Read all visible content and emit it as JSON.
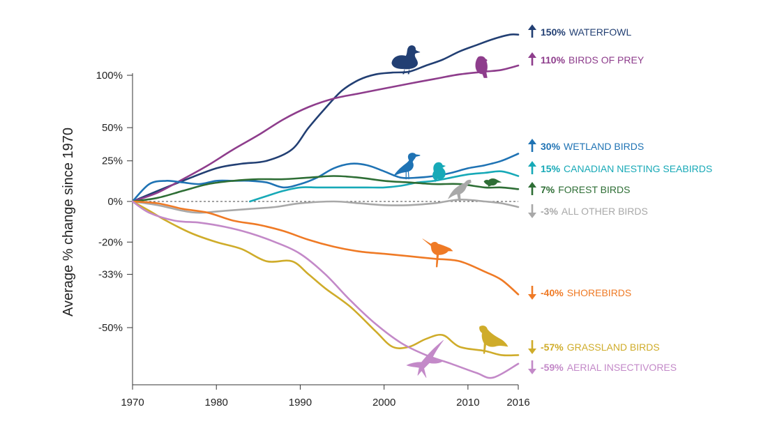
{
  "chart_data": {
    "type": "line",
    "title": "",
    "xlabel": "",
    "ylabel": "Average % change since 1970",
    "xlim": [
      1970,
      2016
    ],
    "x_ticks": [
      "1970",
      "1980",
      "1990",
      "2000",
      "2010",
      "2016"
    ],
    "y_ticks": [
      {
        "value": 100,
        "label": "100%"
      },
      {
        "value": 50,
        "label": "50%"
      },
      {
        "value": 25,
        "label": "25%"
      },
      {
        "value": 0,
        "label": "0%"
      },
      {
        "value": -20,
        "label": "-20%"
      },
      {
        "value": -33,
        "label": "-33%"
      },
      {
        "value": -50,
        "label": "-50%"
      }
    ],
    "y_scale_note": "nonlinear (index scale): 100%=doubling, -50%=halving",
    "baseline": {
      "value": 0,
      "style": "dashed"
    },
    "series": [
      {
        "name": "WATERFOWL",
        "pct": "150%",
        "direction": "up",
        "color": "#223f73",
        "icon": "duck-silhouette-icon",
        "points": [
          [
            1970,
            0
          ],
          [
            1973,
            6
          ],
          [
            1976,
            12
          ],
          [
            1980,
            20
          ],
          [
            1983,
            23
          ],
          [
            1986,
            25
          ],
          [
            1989,
            33
          ],
          [
            1991,
            50
          ],
          [
            1993,
            67
          ],
          [
            1995,
            84
          ],
          [
            1997,
            95
          ],
          [
            1999,
            101
          ],
          [
            2001,
            103
          ],
          [
            2003,
            104
          ],
          [
            2005,
            111
          ],
          [
            2007,
            118
          ],
          [
            2009,
            128
          ],
          [
            2011,
            136
          ],
          [
            2013,
            144
          ],
          [
            2015,
            150
          ],
          [
            2016,
            150
          ]
        ]
      },
      {
        "name": "BIRDS OF PREY",
        "pct": "110%",
        "direction": "up",
        "color": "#8e3d8c",
        "icon": "hawk-silhouette-icon",
        "points": [
          [
            1970,
            0
          ],
          [
            1973,
            5
          ],
          [
            1976,
            13
          ],
          [
            1979,
            22
          ],
          [
            1982,
            33
          ],
          [
            1985,
            44
          ],
          [
            1988,
            57
          ],
          [
            1991,
            68
          ],
          [
            1994,
            76
          ],
          [
            1997,
            81
          ],
          [
            2000,
            86
          ],
          [
            2003,
            91
          ],
          [
            2006,
            96
          ],
          [
            2009,
            101
          ],
          [
            2012,
            104
          ],
          [
            2014,
            106
          ],
          [
            2016,
            111
          ]
        ]
      },
      {
        "name": "WETLAND BIRDS",
        "pct": "30%",
        "direction": "up",
        "color": "#1f73b4",
        "icon": "heron-silhouette-icon",
        "points": [
          [
            1970,
            0
          ],
          [
            1972,
            10
          ],
          [
            1974,
            12
          ],
          [
            1976,
            11
          ],
          [
            1978,
            10
          ],
          [
            1980,
            12
          ],
          [
            1982,
            12
          ],
          [
            1984,
            12
          ],
          [
            1986,
            11
          ],
          [
            1988,
            8
          ],
          [
            1990,
            10
          ],
          [
            1992,
            14
          ],
          [
            1994,
            20
          ],
          [
            1996,
            23
          ],
          [
            1998,
            22
          ],
          [
            2000,
            18
          ],
          [
            2002,
            14
          ],
          [
            2004,
            14
          ],
          [
            2006,
            15
          ],
          [
            2008,
            17
          ],
          [
            2010,
            20
          ],
          [
            2012,
            22
          ],
          [
            2014,
            25
          ],
          [
            2016,
            30
          ]
        ]
      },
      {
        "name": "CANADIAN NESTING SEABIRDS",
        "pct": "15%",
        "direction": "up",
        "color": "#17a9b7",
        "icon": "puffin-silhouette-icon",
        "points": [
          [
            1984,
            0
          ],
          [
            1986,
            3
          ],
          [
            1988,
            6
          ],
          [
            1990,
            8
          ],
          [
            1992,
            8
          ],
          [
            1994,
            8
          ],
          [
            1996,
            8
          ],
          [
            1998,
            8
          ],
          [
            2000,
            8
          ],
          [
            2002,
            9
          ],
          [
            2004,
            11
          ],
          [
            2006,
            12
          ],
          [
            2008,
            14
          ],
          [
            2010,
            16
          ],
          [
            2012,
            17
          ],
          [
            2014,
            18
          ],
          [
            2016,
            15
          ]
        ]
      },
      {
        "name": "FOREST BIRDS",
        "pct": "7%",
        "direction": "up",
        "color": "#2e6e35",
        "icon": "forest-bird-silhouette-icon",
        "points": [
          [
            1970,
            0
          ],
          [
            1973,
            2
          ],
          [
            1976,
            6
          ],
          [
            1979,
            10
          ],
          [
            1982,
            12
          ],
          [
            1985,
            13
          ],
          [
            1988,
            13
          ],
          [
            1991,
            14
          ],
          [
            1994,
            15
          ],
          [
            1997,
            14
          ],
          [
            2000,
            12
          ],
          [
            2003,
            11
          ],
          [
            2006,
            10
          ],
          [
            2009,
            10
          ],
          [
            2012,
            8
          ],
          [
            2014,
            8
          ],
          [
            2016,
            7
          ]
        ]
      },
      {
        "name": "ALL OTHER BIRDS",
        "pct": "-3%",
        "direction": "down",
        "color": "#a8a8a8",
        "icon": "crow-silhouette-icon",
        "points": [
          [
            1970,
            0
          ],
          [
            1973,
            -2
          ],
          [
            1976,
            -5
          ],
          [
            1978,
            -6
          ],
          [
            1981,
            -5
          ],
          [
            1984,
            -4
          ],
          [
            1987,
            -3
          ],
          [
            1990,
            -1
          ],
          [
            1994,
            0
          ],
          [
            1997,
            -1
          ],
          [
            2000,
            -2
          ],
          [
            2003,
            -2
          ],
          [
            2006,
            -1
          ],
          [
            2009,
            1
          ],
          [
            2012,
            0
          ],
          [
            2014,
            -1
          ],
          [
            2016,
            -3
          ]
        ]
      },
      {
        "name": "SHOREBIRDS",
        "pct": "-40%",
        "direction": "down",
        "color": "#ef7a25",
        "icon": "shorebird-silhouette-icon",
        "points": [
          [
            1970,
            0
          ],
          [
            1973,
            -1
          ],
          [
            1976,
            -4
          ],
          [
            1979,
            -6
          ],
          [
            1982,
            -10
          ],
          [
            1985,
            -12
          ],
          [
            1988,
            -15
          ],
          [
            1991,
            -19
          ],
          [
            1994,
            -22
          ],
          [
            1997,
            -24
          ],
          [
            2000,
            -25
          ],
          [
            2003,
            -26
          ],
          [
            2006,
            -27
          ],
          [
            2009,
            -28
          ],
          [
            2012,
            -32
          ],
          [
            2014,
            -35
          ],
          [
            2016,
            -40
          ]
        ]
      },
      {
        "name": "GRASSLAND BIRDS",
        "pct": "-57%",
        "direction": "down",
        "color": "#cfac2a",
        "icon": "meadowlark-silhouette-icon",
        "points": [
          [
            1970,
            0
          ],
          [
            1972,
            -5
          ],
          [
            1974,
            -10
          ],
          [
            1977,
            -16
          ],
          [
            1980,
            -20
          ],
          [
            1983,
            -23
          ],
          [
            1986,
            -28
          ],
          [
            1989,
            -28
          ],
          [
            1991,
            -33
          ],
          [
            1993,
            -38
          ],
          [
            1996,
            -44
          ],
          [
            1999,
            -51
          ],
          [
            2001,
            -55
          ],
          [
            2003,
            -55
          ],
          [
            2005,
            -53
          ],
          [
            2007,
            -52
          ],
          [
            2009,
            -55
          ],
          [
            2012,
            -56
          ],
          [
            2014,
            -57
          ],
          [
            2016,
            -57
          ]
        ]
      },
      {
        "name": "AERIAL INSECTIVORES",
        "pct": "-59%",
        "direction": "down",
        "color": "#c389c8",
        "icon": "swallow-silhouette-icon",
        "points": [
          [
            1970,
            0
          ],
          [
            1972,
            -6
          ],
          [
            1975,
            -10
          ],
          [
            1978,
            -11
          ],
          [
            1981,
            -13
          ],
          [
            1984,
            -16
          ],
          [
            1987,
            -20
          ],
          [
            1990,
            -25
          ],
          [
            1993,
            -33
          ],
          [
            1996,
            -42
          ],
          [
            1999,
            -49
          ],
          [
            2002,
            -54
          ],
          [
            2005,
            -57
          ],
          [
            2008,
            -59
          ],
          [
            2011,
            -61
          ],
          [
            2013,
            -62
          ],
          [
            2016,
            -59
          ]
        ]
      }
    ]
  }
}
